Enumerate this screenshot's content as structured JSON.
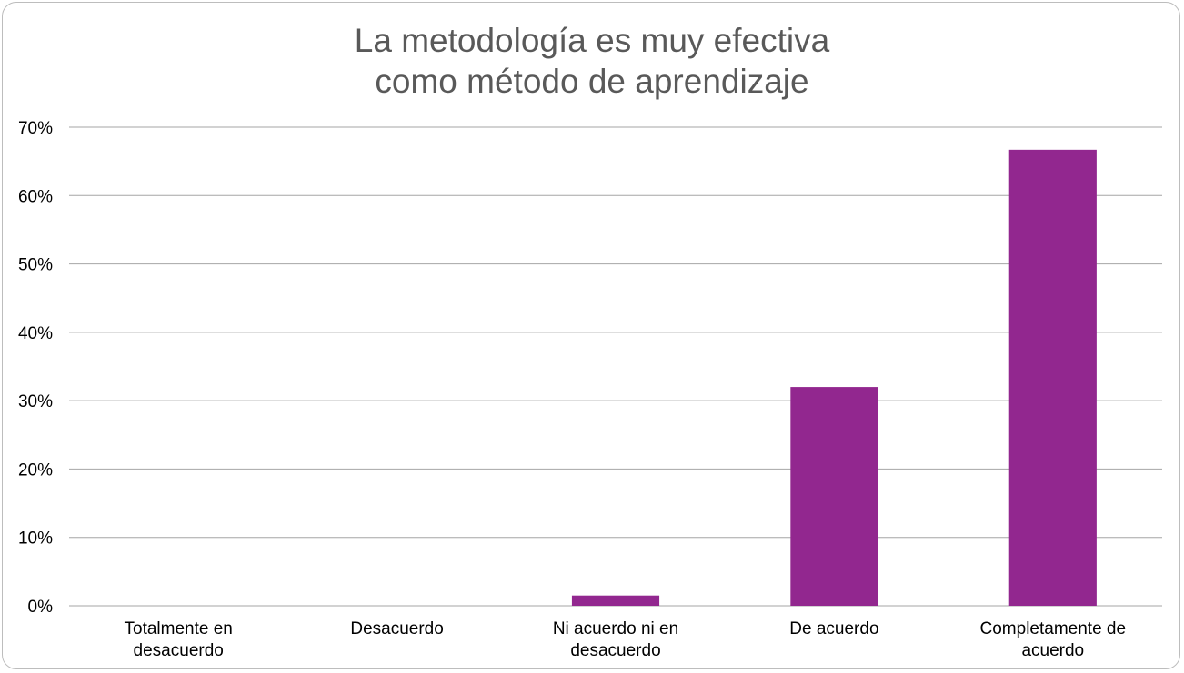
{
  "chart_data": {
    "type": "bar",
    "title_lines": [
      "La metodología es muy efectiva",
      "como método de aprendizaje"
    ],
    "categories": [
      [
        "Totalmente en",
        "desacuerdo"
      ],
      [
        "Desacuerdo"
      ],
      [
        "Ni acuerdo ni en",
        "desacuerdo"
      ],
      [
        "De acuerdo"
      ],
      [
        "Completamente de",
        "acuerdo"
      ]
    ],
    "values": [
      0,
      0,
      1.5,
      32,
      66.7
    ],
    "y_ticks": [
      "0%",
      "10%",
      "20%",
      "30%",
      "40%",
      "50%",
      "60%",
      "70%"
    ],
    "ylim": [
      0,
      70
    ],
    "grid": true,
    "colors": {
      "bar": "#92278f",
      "grid": "#a6a6a6",
      "title": "#595959"
    }
  }
}
